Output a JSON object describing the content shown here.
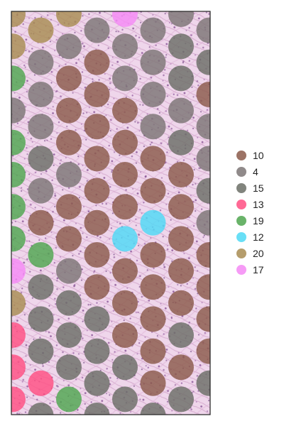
{
  "chart_data": {
    "type": "scatter",
    "description_free": true,
    "background": "tissue-image",
    "legend": {
      "position": "right",
      "entries": [
        {
          "label": "10",
          "color": "#8B5A4A"
        },
        {
          "label": "4",
          "color": "#7D7575"
        },
        {
          "label": "15",
          "color": "#6B6E66"
        },
        {
          "label": "13",
          "color": "#FF4F82"
        },
        {
          "label": "19",
          "color": "#4FA64F"
        },
        {
          "label": "12",
          "color": "#4FD9F5"
        },
        {
          "label": "20",
          "color": "#A88C52"
        },
        {
          "label": "17",
          "color": "#F58AF5"
        }
      ]
    },
    "spots": [
      {
        "x": 0,
        "y": 0,
        "c": "20"
      },
      {
        "x": 2,
        "y": 0,
        "c": "20"
      },
      {
        "x": 4,
        "y": 0,
        "c": "17"
      },
      {
        "x": 6,
        "y": 0,
        "c": "4"
      },
      {
        "x": 1,
        "y": 1,
        "c": "20"
      },
      {
        "x": 3,
        "y": 1,
        "c": "4"
      },
      {
        "x": 5,
        "y": 1,
        "c": "4"
      },
      {
        "x": 7,
        "y": 1,
        "c": "4"
      },
      {
        "x": 0,
        "y": 2,
        "c": "20"
      },
      {
        "x": 2,
        "y": 2,
        "c": "4"
      },
      {
        "x": 4,
        "y": 2,
        "c": "4"
      },
      {
        "x": 6,
        "y": 2,
        "c": "15"
      },
      {
        "x": 1,
        "y": 3,
        "c": "4"
      },
      {
        "x": 3,
        "y": 3,
        "c": "10"
      },
      {
        "x": 5,
        "y": 3,
        "c": "4"
      },
      {
        "x": 7,
        "y": 3,
        "c": "15"
      },
      {
        "x": 0,
        "y": 4,
        "c": "19"
      },
      {
        "x": 2,
        "y": 4,
        "c": "10"
      },
      {
        "x": 4,
        "y": 4,
        "c": "4"
      },
      {
        "x": 6,
        "y": 4,
        "c": "15"
      },
      {
        "x": 1,
        "y": 5,
        "c": "4"
      },
      {
        "x": 3,
        "y": 5,
        "c": "10"
      },
      {
        "x": 5,
        "y": 5,
        "c": "4"
      },
      {
        "x": 7,
        "y": 5,
        "c": "10"
      },
      {
        "x": 0,
        "y": 6,
        "c": "4"
      },
      {
        "x": 2,
        "y": 6,
        "c": "10"
      },
      {
        "x": 4,
        "y": 6,
        "c": "10"
      },
      {
        "x": 6,
        "y": 6,
        "c": "4"
      },
      {
        "x": 1,
        "y": 7,
        "c": "4"
      },
      {
        "x": 3,
        "y": 7,
        "c": "10"
      },
      {
        "x": 5,
        "y": 7,
        "c": "4"
      },
      {
        "x": 7,
        "y": 7,
        "c": "4"
      },
      {
        "x": 0,
        "y": 8,
        "c": "19"
      },
      {
        "x": 2,
        "y": 8,
        "c": "10"
      },
      {
        "x": 4,
        "y": 8,
        "c": "10"
      },
      {
        "x": 6,
        "y": 8,
        "c": "15"
      },
      {
        "x": 1,
        "y": 9,
        "c": "15"
      },
      {
        "x": 3,
        "y": 9,
        "c": "10"
      },
      {
        "x": 5,
        "y": 9,
        "c": "10"
      },
      {
        "x": 7,
        "y": 9,
        "c": "4"
      },
      {
        "x": 0,
        "y": 10,
        "c": "19"
      },
      {
        "x": 2,
        "y": 10,
        "c": "4"
      },
      {
        "x": 4,
        "y": 10,
        "c": "10"
      },
      {
        "x": 6,
        "y": 10,
        "c": "10"
      },
      {
        "x": 1,
        "y": 11,
        "c": "4"
      },
      {
        "x": 3,
        "y": 11,
        "c": "10"
      },
      {
        "x": 5,
        "y": 11,
        "c": "10"
      },
      {
        "x": 7,
        "y": 11,
        "c": "15"
      },
      {
        "x": 0,
        "y": 12,
        "c": "19"
      },
      {
        "x": 2,
        "y": 12,
        "c": "10"
      },
      {
        "x": 4,
        "y": 12,
        "c": "10"
      },
      {
        "x": 6,
        "y": 12,
        "c": "10"
      },
      {
        "x": 1,
        "y": 13,
        "c": "10"
      },
      {
        "x": 3,
        "y": 13,
        "c": "10"
      },
      {
        "x": 5,
        "y": 13,
        "c": "12"
      },
      {
        "x": 7,
        "y": 13,
        "c": "4"
      },
      {
        "x": 0,
        "y": 14,
        "c": "19"
      },
      {
        "x": 2,
        "y": 14,
        "c": "10"
      },
      {
        "x": 4,
        "y": 14,
        "c": "12"
      },
      {
        "x": 6,
        "y": 14,
        "c": "10"
      },
      {
        "x": 1,
        "y": 15,
        "c": "19"
      },
      {
        "x": 3,
        "y": 15,
        "c": "10"
      },
      {
        "x": 5,
        "y": 15,
        "c": "10"
      },
      {
        "x": 7,
        "y": 15,
        "c": "10"
      },
      {
        "x": 0,
        "y": 16,
        "c": "17"
      },
      {
        "x": 2,
        "y": 16,
        "c": "4"
      },
      {
        "x": 4,
        "y": 16,
        "c": "10"
      },
      {
        "x": 6,
        "y": 16,
        "c": "10"
      },
      {
        "x": 1,
        "y": 17,
        "c": "15"
      },
      {
        "x": 3,
        "y": 17,
        "c": "10"
      },
      {
        "x": 5,
        "y": 17,
        "c": "10"
      },
      {
        "x": 7,
        "y": 17,
        "c": "10"
      },
      {
        "x": 0,
        "y": 18,
        "c": "20"
      },
      {
        "x": 2,
        "y": 18,
        "c": "15"
      },
      {
        "x": 4,
        "y": 18,
        "c": "10"
      },
      {
        "x": 6,
        "y": 18,
        "c": "10"
      },
      {
        "x": 1,
        "y": 19,
        "c": "15"
      },
      {
        "x": 3,
        "y": 19,
        "c": "15"
      },
      {
        "x": 5,
        "y": 19,
        "c": "10"
      },
      {
        "x": 7,
        "y": 19,
        "c": "10"
      },
      {
        "x": 0,
        "y": 20,
        "c": "13"
      },
      {
        "x": 2,
        "y": 20,
        "c": "15"
      },
      {
        "x": 4,
        "y": 20,
        "c": "10"
      },
      {
        "x": 6,
        "y": 20,
        "c": "15"
      },
      {
        "x": 1,
        "y": 21,
        "c": "15"
      },
      {
        "x": 3,
        "y": 21,
        "c": "15"
      },
      {
        "x": 5,
        "y": 21,
        "c": "10"
      },
      {
        "x": 7,
        "y": 21,
        "c": "10"
      },
      {
        "x": 0,
        "y": 22,
        "c": "13"
      },
      {
        "x": 2,
        "y": 22,
        "c": "15"
      },
      {
        "x": 4,
        "y": 22,
        "c": "15"
      },
      {
        "x": 6,
        "y": 22,
        "c": "10"
      },
      {
        "x": 1,
        "y": 23,
        "c": "13"
      },
      {
        "x": 3,
        "y": 23,
        "c": "15"
      },
      {
        "x": 5,
        "y": 23,
        "c": "10"
      },
      {
        "x": 7,
        "y": 23,
        "c": "15"
      },
      {
        "x": 0,
        "y": 24,
        "c": "13"
      },
      {
        "x": 2,
        "y": 24,
        "c": "19"
      },
      {
        "x": 4,
        "y": 24,
        "c": "15"
      },
      {
        "x": 6,
        "y": 24,
        "c": "15"
      },
      {
        "x": 1,
        "y": 25,
        "c": "15"
      },
      {
        "x": 3,
        "y": 25,
        "c": "15"
      },
      {
        "x": 5,
        "y": 25,
        "c": "15"
      }
    ]
  }
}
